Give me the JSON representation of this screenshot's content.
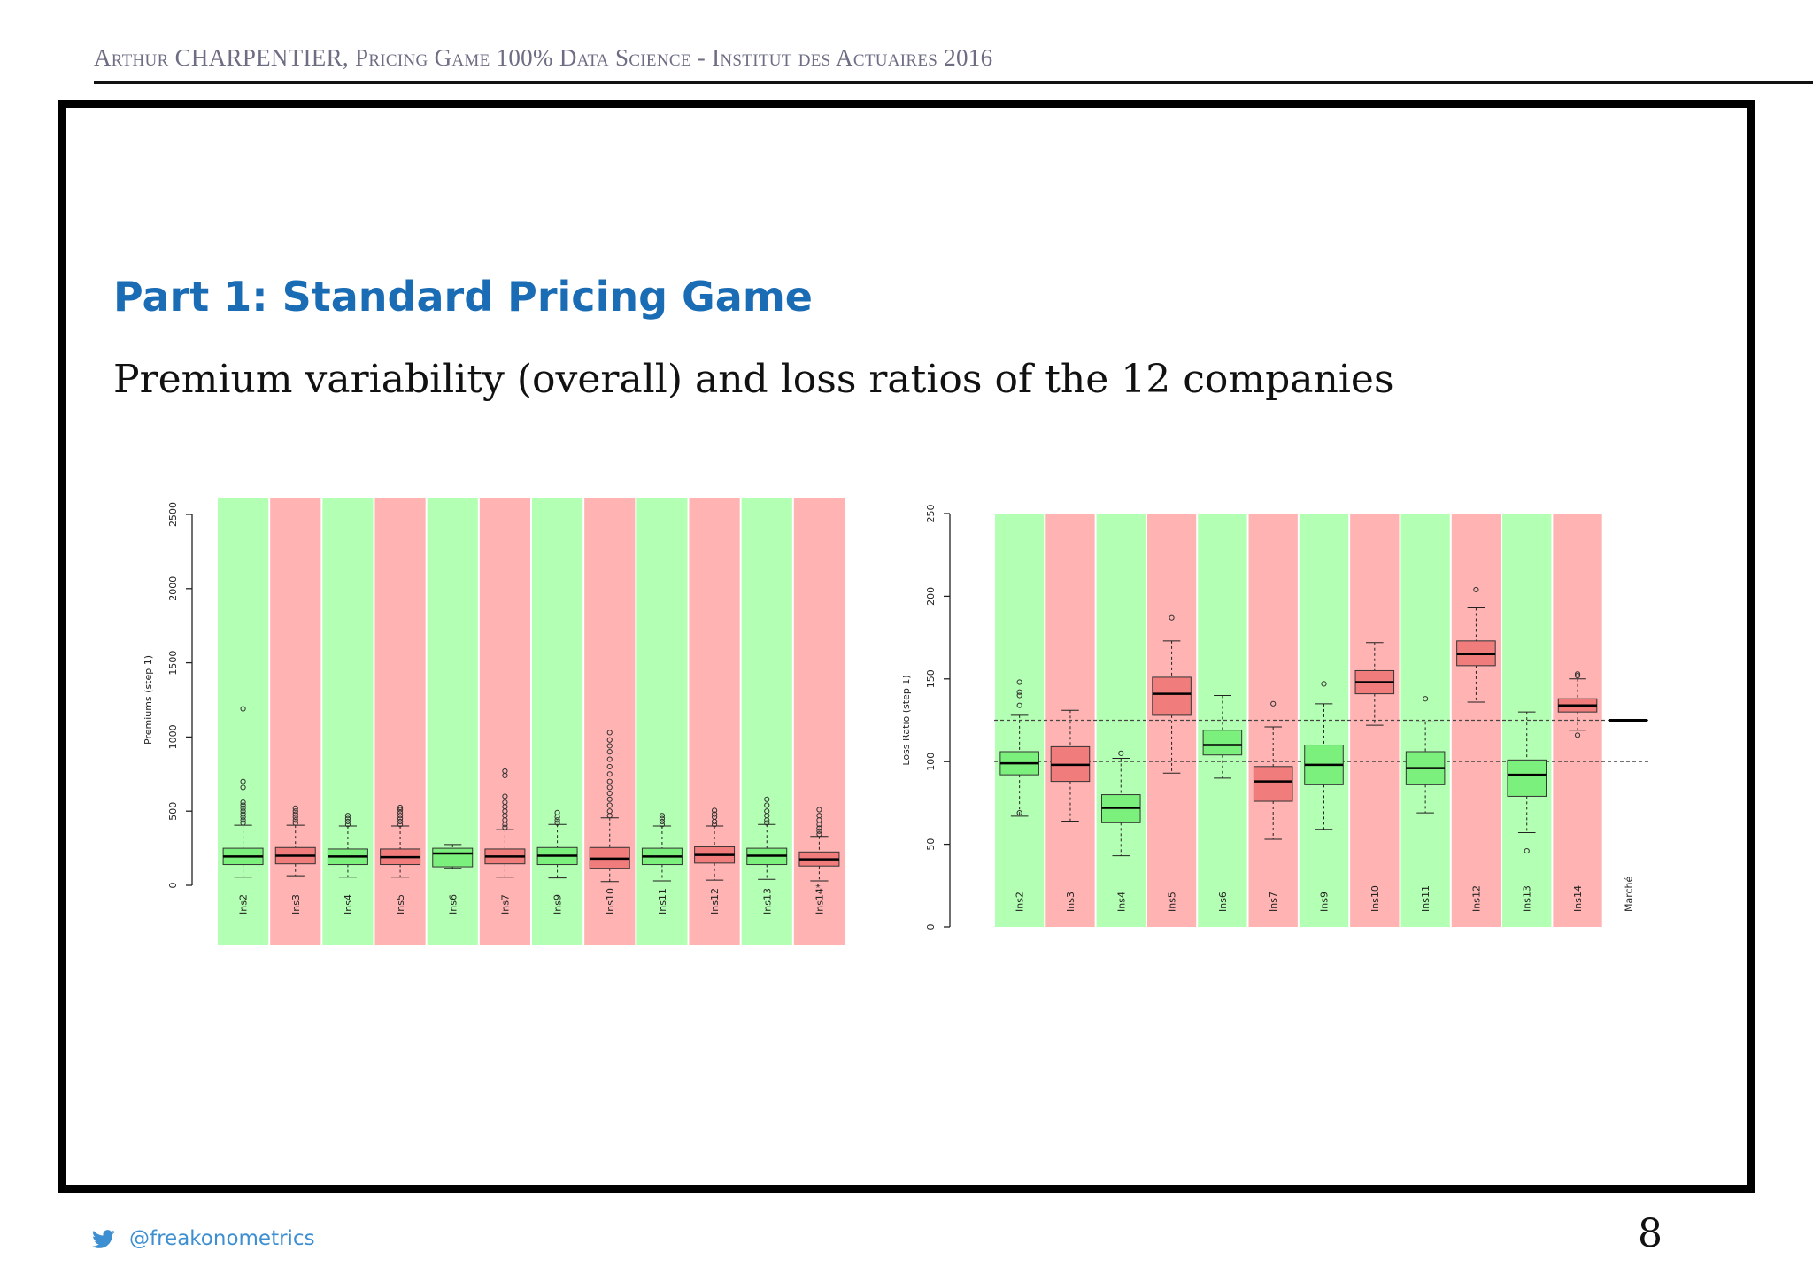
{
  "header": {
    "text": "Arthur CHARPENTIER, Pricing Game 100% Data Science - Institut des Actuaires 2016"
  },
  "slide": {
    "title": "Part 1: Standard Pricing Game",
    "subtitle": "Premium variability (overall) and loss ratios of the 12 companies"
  },
  "footer": {
    "twitter_handle": "@freakonometrics",
    "page_number": "8",
    "icon": "twitter-bird-icon"
  },
  "colors": {
    "title_blue": "#1a6cb4",
    "header_gray": "#6d6d84",
    "green_band": "#b3ffb3",
    "red_band": "#ffb3b3",
    "green_box": "#7cf07c",
    "red_box": "#f07c7c"
  },
  "chart_data": [
    {
      "type": "boxplot",
      "ylabel": "Premiums (step 1)",
      "ylim": [
        0,
        2500
      ],
      "yticks": [
        0,
        500,
        1000,
        1500,
        2000,
        2500
      ],
      "categories": [
        "Ins2",
        "Ins3",
        "Ins4",
        "Ins5",
        "Ins6",
        "Ins7",
        "Ins9",
        "Ins10",
        "Ins11",
        "Ins12",
        "Ins13",
        "Ins14*"
      ],
      "band_colors": [
        "green",
        "red",
        "green",
        "red",
        "green",
        "red",
        "green",
        "red",
        "green",
        "red",
        "green",
        "red"
      ],
      "series": [
        {
          "name": "Ins2",
          "whisker_low": 55,
          "q1": 140,
          "median": 195,
          "q3": 250,
          "whisker_high": 405,
          "outliers": [
            420,
            440,
            460,
            480,
            500,
            520,
            540,
            560,
            660,
            700,
            1190
          ]
        },
        {
          "name": "Ins3",
          "whisker_low": 65,
          "q1": 145,
          "median": 200,
          "q3": 255,
          "whisker_high": 405,
          "outliers": [
            420,
            440,
            460,
            480,
            500,
            520
          ]
        },
        {
          "name": "Ins4",
          "whisker_low": 55,
          "q1": 140,
          "median": 195,
          "q3": 245,
          "whisker_high": 400,
          "outliers": [
            410,
            430,
            450,
            470
          ]
        },
        {
          "name": "Ins5",
          "whisker_low": 55,
          "q1": 140,
          "median": 190,
          "q3": 245,
          "whisker_high": 400,
          "outliers": [
            410,
            430,
            450,
            470,
            490,
            510,
            525
          ]
        },
        {
          "name": "Ins6",
          "whisker_low": 115,
          "q1": 125,
          "median": 215,
          "q3": 250,
          "whisker_high": 275,
          "outliers": []
        },
        {
          "name": "Ins7",
          "whisker_low": 55,
          "q1": 145,
          "median": 195,
          "q3": 245,
          "whisker_high": 375,
          "outliers": [
            390,
            410,
            440,
            470,
            500,
            530,
            560,
            600,
            740,
            770
          ]
        },
        {
          "name": "Ins9",
          "whisker_low": 50,
          "q1": 140,
          "median": 200,
          "q3": 255,
          "whisker_high": 410,
          "outliers": [
            420,
            440,
            460,
            490
          ]
        },
        {
          "name": "Ins10",
          "whisker_low": 25,
          "q1": 115,
          "median": 180,
          "q3": 255,
          "whisker_high": 455,
          "outliers": [
            470,
            500,
            540,
            580,
            620,
            660,
            700,
            750,
            800,
            850,
            900,
            940,
            980,
            1030
          ]
        },
        {
          "name": "Ins11",
          "whisker_low": 30,
          "q1": 140,
          "median": 195,
          "q3": 250,
          "whisker_high": 400,
          "outliers": [
            410,
            430,
            450,
            470
          ]
        },
        {
          "name": "Ins12",
          "whisker_low": 35,
          "q1": 150,
          "median": 205,
          "q3": 260,
          "whisker_high": 400,
          "outliers": [
            410,
            430,
            460,
            480,
            505
          ]
        },
        {
          "name": "Ins13",
          "whisker_low": 40,
          "q1": 140,
          "median": 200,
          "q3": 250,
          "whisker_high": 410,
          "outliers": [
            420,
            440,
            470,
            500,
            540,
            580
          ]
        },
        {
          "name": "Ins14*",
          "whisker_low": 30,
          "q1": 130,
          "median": 175,
          "q3": 225,
          "whisker_high": 330,
          "outliers": [
            345,
            365,
            385,
            410,
            440,
            470,
            510
          ]
        }
      ]
    },
    {
      "type": "boxplot",
      "ylabel": "Loss Ratio (step 1)",
      "ylim": [
        0,
        250
      ],
      "yticks": [
        0,
        50,
        100,
        150,
        200,
        250
      ],
      "reference_lines": [
        100,
        125
      ],
      "categories": [
        "Ins2",
        "Ins3",
        "Ins4",
        "Ins5",
        "Ins6",
        "Ins7",
        "Ins9",
        "Ins10",
        "Ins11",
        "Ins12",
        "Ins13",
        "Ins14",
        "Marché"
      ],
      "band_colors": [
        "green",
        "red",
        "green",
        "red",
        "green",
        "red",
        "green",
        "red",
        "green",
        "red",
        "green",
        "red",
        "none"
      ],
      "series": [
        {
          "name": "Ins2",
          "whisker_low": 67,
          "q1": 92,
          "median": 99,
          "q3": 106,
          "whisker_high": 128,
          "outliers": [
            69,
            134,
            140,
            142,
            148
          ]
        },
        {
          "name": "Ins3",
          "whisker_low": 64,
          "q1": 88,
          "median": 98,
          "q3": 109,
          "whisker_high": 131,
          "outliers": []
        },
        {
          "name": "Ins4",
          "whisker_low": 43,
          "q1": 63,
          "median": 72,
          "q3": 80,
          "whisker_high": 102,
          "outliers": [
            105
          ]
        },
        {
          "name": "Ins5",
          "whisker_low": 93,
          "q1": 128,
          "median": 141,
          "q3": 151,
          "whisker_high": 173,
          "outliers": [
            187
          ]
        },
        {
          "name": "Ins6",
          "whisker_low": 90,
          "q1": 104,
          "median": 110,
          "q3": 119,
          "whisker_high": 140,
          "outliers": []
        },
        {
          "name": "Ins7",
          "whisker_low": 53,
          "q1": 76,
          "median": 88,
          "q3": 97,
          "whisker_high": 121,
          "outliers": [
            135
          ]
        },
        {
          "name": "Ins9",
          "whisker_low": 59,
          "q1": 86,
          "median": 98,
          "q3": 110,
          "whisker_high": 135,
          "outliers": [
            147
          ]
        },
        {
          "name": "Ins10",
          "whisker_low": 122,
          "q1": 141,
          "median": 148,
          "q3": 155,
          "whisker_high": 172,
          "outliers": []
        },
        {
          "name": "Ins11",
          "whisker_low": 69,
          "q1": 86,
          "median": 96,
          "q3": 106,
          "whisker_high": 124,
          "outliers": [
            138
          ]
        },
        {
          "name": "Ins12",
          "whisker_low": 136,
          "q1": 158,
          "median": 165,
          "q3": 173,
          "whisker_high": 193,
          "outliers": [
            204
          ]
        },
        {
          "name": "Ins13",
          "whisker_low": 57,
          "q1": 79,
          "median": 92,
          "q3": 101,
          "whisker_high": 130,
          "outliers": [
            46
          ]
        },
        {
          "name": "Ins14",
          "whisker_low": 119,
          "q1": 130,
          "median": 134,
          "q3": 138,
          "whisker_high": 150,
          "outliers": [
            116,
            152,
            153
          ]
        },
        {
          "name": "Marché",
          "whisker_low": 125,
          "q1": 125,
          "median": 125,
          "q3": 125,
          "whisker_high": 125,
          "outliers": []
        }
      ]
    }
  ]
}
